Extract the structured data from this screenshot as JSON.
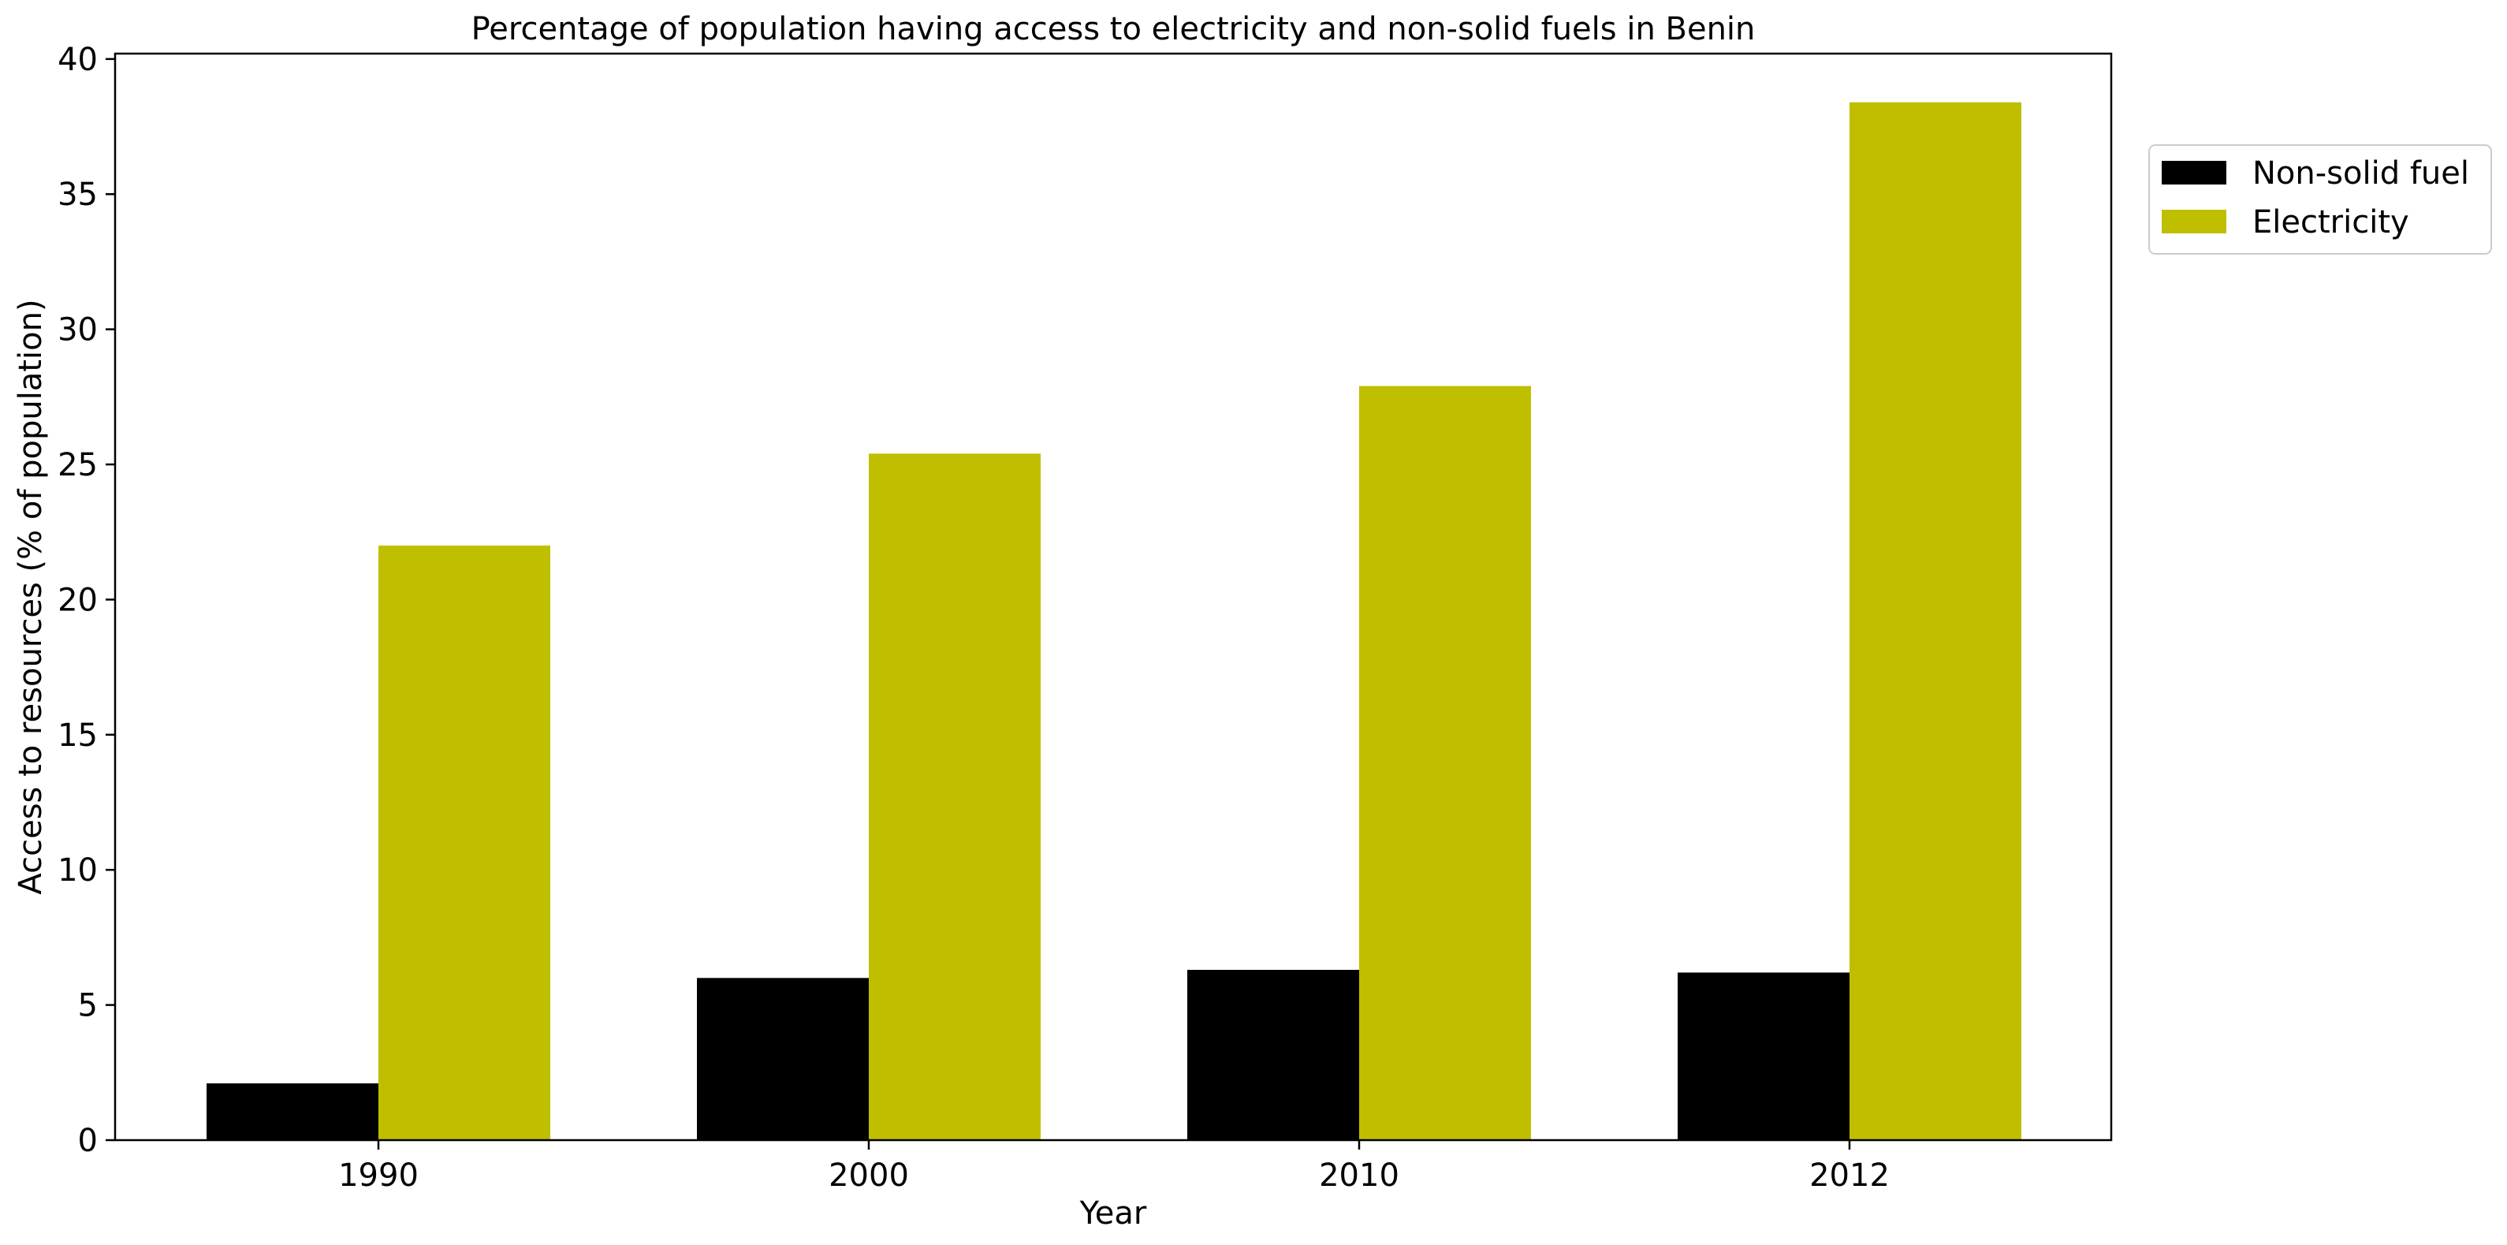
{
  "chart_data": {
    "type": "bar",
    "title": "Percentage of population having access to electricity and non-solid fuels in Benin",
    "xlabel": "Year",
    "ylabel": "Access to resources (% of population)",
    "categories": [
      "1990",
      "2000",
      "2010",
      "2012"
    ],
    "series": [
      {
        "name": "Non-solid fuel",
        "color": "#000000",
        "values": [
          2.1,
          6.0,
          6.3,
          6.2
        ]
      },
      {
        "name": "Electricity",
        "color": "#bfbf00",
        "values": [
          22.0,
          25.4,
          27.9,
          38.4
        ]
      }
    ],
    "ylim": [
      0,
      40.2
    ],
    "yticks": [
      0,
      5,
      10,
      15,
      20,
      25,
      30,
      35,
      40
    ],
    "grid": false,
    "legend_position": "right"
  }
}
